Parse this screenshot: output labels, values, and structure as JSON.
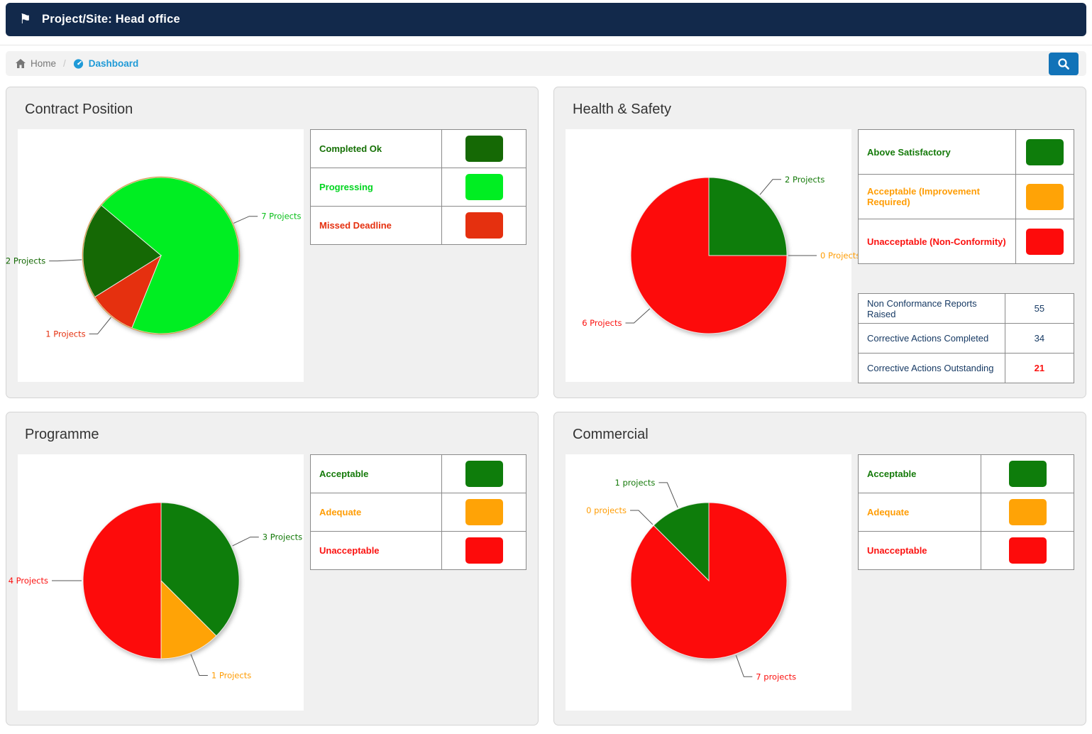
{
  "topbar": {
    "title": "Project/Site: Head office",
    "bg_color": "#12294b",
    "flag_icon": "flag-icon"
  },
  "breadcrumb": {
    "home_label": "Home",
    "separator": "/",
    "current_label": "Dashboard",
    "home_icon": "home-icon",
    "current_icon": "dashboard-gauge-icon",
    "link_color": "#1f9ad7",
    "search_icon": "search-icon",
    "search_button_color": "#1273b8"
  },
  "panels": {
    "contract": {
      "title": "Contract Position",
      "legend": [
        {
          "label": "Completed Ok",
          "text_color": "#157005",
          "swatch_color": "#156905"
        },
        {
          "label": "Progressing",
          "text_color": "#00d41f",
          "swatch_color": "#00ee22"
        },
        {
          "label": "Missed Deadline",
          "text_color": "#e5300f",
          "swatch_color": "#e5300f"
        }
      ]
    },
    "hs": {
      "title": "Health & Safety",
      "legend": [
        {
          "label": "Above Satisfactory",
          "text_color": "#157a0a",
          "swatch_color": "#0e7d0b"
        },
        {
          "label": "Acceptable (Improvement Required)",
          "text_color": "#ff9d05",
          "swatch_color": "#ffa306"
        },
        {
          "label": "Unacceptable (Non-Conformity)",
          "text_color": "#fb1210",
          "swatch_color": "#fd0b0b"
        }
      ],
      "stats": [
        {
          "label": "Non Conformance Reports Raised",
          "value": "55",
          "value_color": "#173a64",
          "value_weight": "normal"
        },
        {
          "label": "Corrective Actions Completed",
          "value": "34",
          "value_color": "#173a64",
          "value_weight": "normal"
        },
        {
          "label": "Corrective Actions Outstanding",
          "value": "21",
          "value_color": "#fb1210",
          "value_weight": "bold"
        }
      ]
    },
    "programme": {
      "title": "Programme",
      "legend": [
        {
          "label": "Acceptable",
          "text_color": "#157a0a",
          "swatch_color": "#0e7d0b"
        },
        {
          "label": "Adequate",
          "text_color": "#ff9d05",
          "swatch_color": "#ffa306"
        },
        {
          "label": "Unacceptable",
          "text_color": "#fb1210",
          "swatch_color": "#fd0b0b"
        }
      ]
    },
    "commercial": {
      "title": "Commercial",
      "legend": [
        {
          "label": "Acceptable",
          "text_color": "#157a0a",
          "swatch_color": "#0e7d0b"
        },
        {
          "label": "Adequate",
          "text_color": "#ff9d05",
          "swatch_color": "#ffa306"
        },
        {
          "label": "Unacceptable",
          "text_color": "#fb1210",
          "swatch_color": "#fd0b0b"
        }
      ]
    }
  },
  "chart_data": [
    {
      "type": "pie",
      "title": "Contract Position",
      "total": 10,
      "start_deg": 310,
      "legend_position": "right-table",
      "rim_color": "#d89a49",
      "slices": [
        {
          "name": "Progressing",
          "value": 7,
          "color": "#00ee22",
          "callout": {
            "text": "7 Projects",
            "color": "#0abf1a",
            "anchor_deg": 66,
            "len": 26
          }
        },
        {
          "name": "Missed Deadline",
          "value": 1,
          "color": "#e5300f",
          "callout": {
            "text": "1 Projects",
            "color": "#e5300f",
            "anchor_deg": 219,
            "len": 32
          }
        },
        {
          "name": "Completed Ok",
          "value": 2,
          "color": "#156905",
          "callout": {
            "text": "2 Projects",
            "color": "#156905",
            "anchor_deg": 267,
            "len": 36
          }
        }
      ]
    },
    {
      "type": "pie",
      "title": "Health & Safety",
      "total": 8,
      "start_deg": 0,
      "legend_position": "right-table",
      "slices": [
        {
          "name": "Above Satisfactory",
          "value": 2,
          "color": "#0e7d0b",
          "callout": {
            "text": "2 Projects",
            "color": "#157a0a",
            "anchor_deg": 40,
            "len": 30
          }
        },
        {
          "name": "Unacceptable (Non-Conformity)",
          "value": 6,
          "color": "#fd0b0b",
          "callout": {
            "text": "6 Projects",
            "color": "#fb1210",
            "anchor_deg": 228,
            "len": 32
          }
        },
        {
          "name": "Acceptable (Improvement Required)",
          "value": 0,
          "color": "#ffa306",
          "callout": {
            "text": "0 Projects",
            "color": "#ff9d05",
            "anchor_deg": 90,
            "len": 30
          }
        }
      ]
    },
    {
      "type": "pie",
      "title": "Programme",
      "total": 8,
      "start_deg": 0,
      "legend_position": "right-table",
      "slices": [
        {
          "name": "Acceptable",
          "value": 3,
          "color": "#0e7d0b",
          "callout": {
            "text": "3 Projects",
            "color": "#157a0a",
            "anchor_deg": 64,
            "len": 30
          }
        },
        {
          "name": "Adequate",
          "value": 1,
          "color": "#ffa306",
          "callout": {
            "text": "1 Projects",
            "color": "#ff9d05",
            "anchor_deg": 158,
            "len": 34
          }
        },
        {
          "name": "Unacceptable",
          "value": 4,
          "color": "#fd0b0b",
          "callout": {
            "text": "4 Projects",
            "color": "#fb1210",
            "anchor_deg": 270,
            "len": 32
          }
        }
      ]
    },
    {
      "type": "pie",
      "title": "Commercial",
      "total": 8,
      "start_deg": 0,
      "legend_position": "right-table",
      "slices": [
        {
          "name": "Unacceptable",
          "value": 7,
          "color": "#fd0b0b",
          "callout": {
            "text": "7 projects",
            "color": "#fb1210",
            "anchor_deg": 160,
            "len": 34
          }
        },
        {
          "name": "Acceptable",
          "value": 1,
          "color": "#0e7d0b",
          "callout": {
            "text": "1 projects",
            "color": "#157a0a",
            "anchor_deg": 337,
            "len": 40
          }
        },
        {
          "name": "Adequate",
          "value": 0,
          "color": "#ffa306",
          "callout": {
            "text": "0 projects",
            "color": "#ff9d05",
            "anchor_deg": 315,
            "len": 30
          }
        }
      ]
    }
  ]
}
